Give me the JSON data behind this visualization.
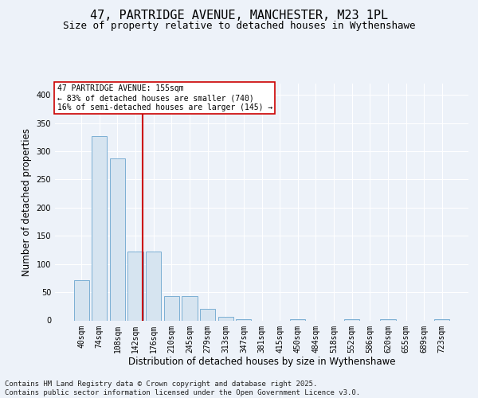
{
  "title": "47, PARTRIDGE AVENUE, MANCHESTER, M23 1PL",
  "subtitle": "Size of property relative to detached houses in Wythenshawe",
  "xlabel": "Distribution of detached houses by size in Wythenshawe",
  "ylabel": "Number of detached properties",
  "bar_labels": [
    "40sqm",
    "74sqm",
    "108sqm",
    "142sqm",
    "176sqm",
    "210sqm",
    "245sqm",
    "279sqm",
    "313sqm",
    "347sqm",
    "381sqm",
    "415sqm",
    "450sqm",
    "484sqm",
    "518sqm",
    "552sqm",
    "586sqm",
    "620sqm",
    "655sqm",
    "689sqm",
    "723sqm"
  ],
  "bar_values": [
    72,
    327,
    287,
    122,
    122,
    43,
    43,
    20,
    7,
    2,
    0,
    0,
    2,
    0,
    0,
    2,
    0,
    2,
    0,
    0,
    2
  ],
  "bar_color": "#d6e4f0",
  "bar_edge_color": "#7bafd4",
  "vline_color": "#cc0000",
  "annotation_text": "47 PARTRIDGE AVENUE: 155sqm\n← 83% of detached houses are smaller (740)\n16% of semi-detached houses are larger (145) →",
  "annotation_box_color": "#ffffff",
  "annotation_box_edge": "#cc0000",
  "ylim": [
    0,
    420
  ],
  "yticks": [
    0,
    50,
    100,
    150,
    200,
    250,
    300,
    350,
    400
  ],
  "footer": "Contains HM Land Registry data © Crown copyright and database right 2025.\nContains public sector information licensed under the Open Government Licence v3.0.",
  "bg_color": "#edf2f9",
  "plot_bg_color": "#edf2f9",
  "grid_color": "#ffffff",
  "title_fontsize": 11,
  "subtitle_fontsize": 9,
  "axis_label_fontsize": 8.5,
  "tick_fontsize": 7,
  "footer_fontsize": 6.5
}
